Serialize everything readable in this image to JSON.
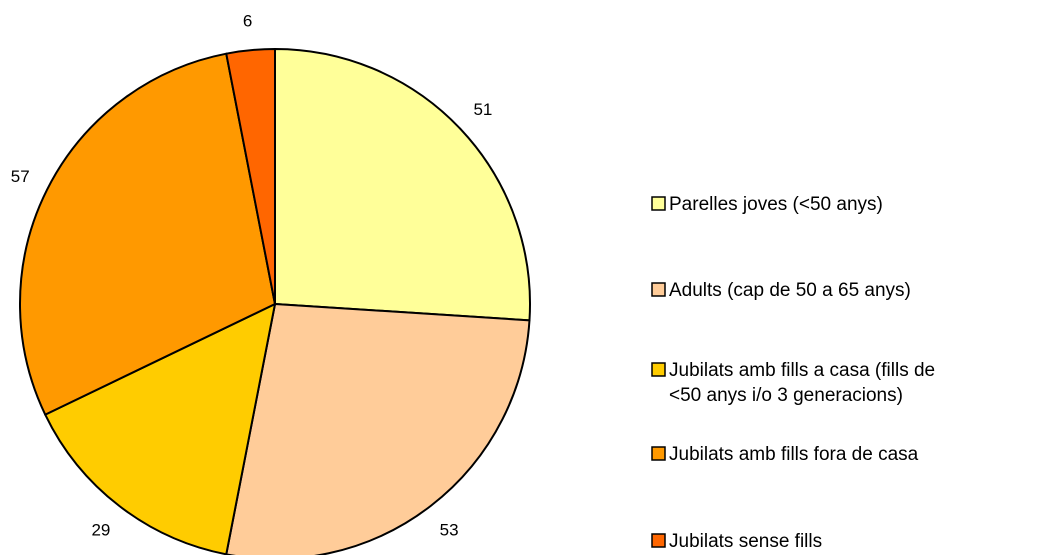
{
  "chart_data": {
    "type": "pie",
    "title": "",
    "legend_position": "right",
    "start": "12 o'clock, clockwise",
    "slices": [
      {
        "label": "Parelles joves (<50 anys)",
        "legend_lines": [
          "Parelles joves (<50 anys)"
        ],
        "value": 51,
        "color": "#FFFF99"
      },
      {
        "label": "Adults (cap de 50 a 65 anys)",
        "legend_lines": [
          "Adults (cap de 50 a 65 anys)"
        ],
        "value": 53,
        "color": "#FFCC99"
      },
      {
        "label": "Jubilats amb fills a casa (fills de <50 anys i/o 3 generacions)",
        "legend_lines": [
          "Jubilats amb fills a casa (fills de",
          "<50 anys i/o 3 generacions)"
        ],
        "value": 29,
        "color": "#FFCC00"
      },
      {
        "label": "Jubilats amb fills fora de casa",
        "legend_lines": [
          "Jubilats amb fills fora de casa"
        ],
        "value": 57,
        "color": "#FF9900"
      },
      {
        "label": "Jubilats sense fills",
        "legend_lines": [
          "Jubilats sense fills"
        ],
        "value": 6,
        "color": "#FF6600"
      }
    ]
  }
}
